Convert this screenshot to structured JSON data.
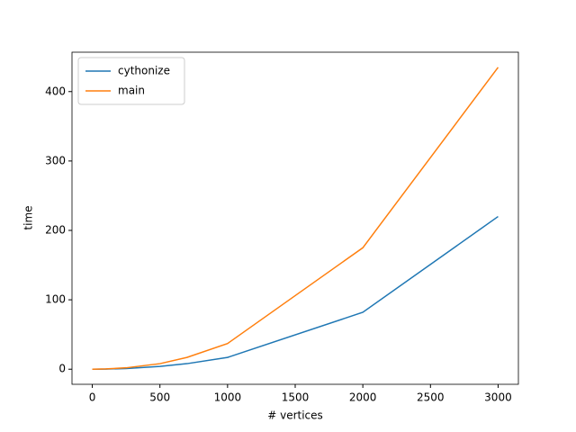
{
  "chart_data": {
    "type": "line",
    "xlabel": "# vertices",
    "ylabel": "time",
    "x": [
      0,
      100,
      250,
      500,
      700,
      1000,
      2000,
      3000
    ],
    "series": [
      {
        "name": "cythonize",
        "color": "#1f77b4",
        "values": [
          0,
          0.2,
          1,
          4,
          8,
          17,
          82,
          220
        ]
      },
      {
        "name": "main",
        "color": "#ff7f0e",
        "values": [
          0,
          0.4,
          2,
          8,
          17,
          37,
          175,
          435
        ]
      }
    ],
    "xlim": [
      -150,
      3150
    ],
    "xticks": [
      0,
      500,
      1000,
      1500,
      2000,
      2500,
      3000
    ],
    "ylim": [
      -21.75,
      456.75
    ],
    "yticks": [
      0,
      100,
      200,
      300,
      400
    ],
    "legend": "upper left"
  }
}
